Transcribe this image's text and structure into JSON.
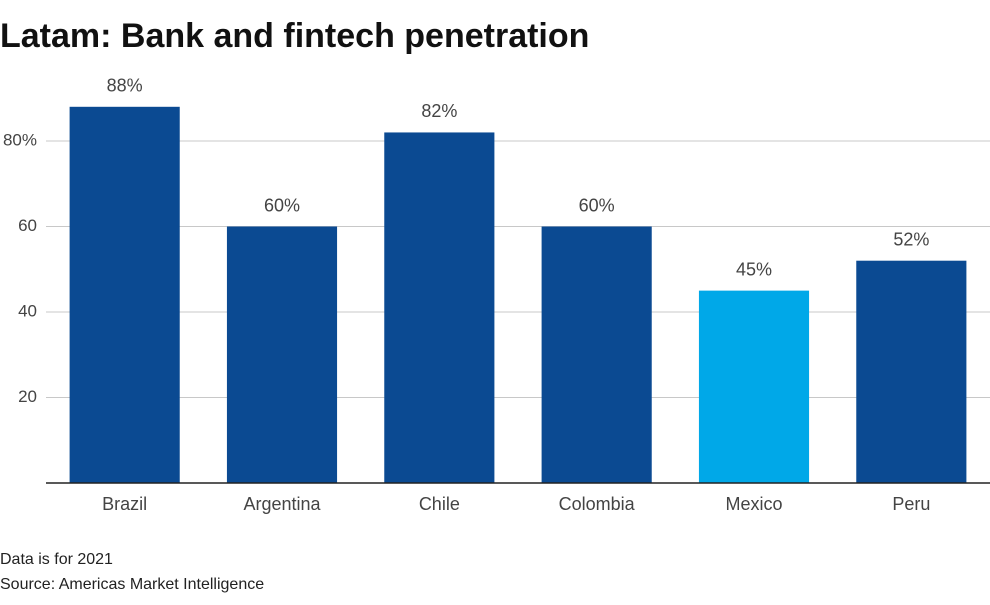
{
  "chart_data": {
    "type": "bar",
    "title": "Latam: Bank and fintech penetration",
    "categories": [
      "Brazil",
      "Argentina",
      "Chile",
      "Colombia",
      "Mexico",
      "Peru"
    ],
    "values": [
      88,
      60,
      82,
      60,
      45,
      52
    ],
    "value_labels": [
      "88%",
      "60%",
      "82%",
      "60%",
      "45%",
      "52%"
    ],
    "colors": [
      "#0b4a92",
      "#0b4a92",
      "#0b4a92",
      "#0b4a92",
      "#00a8e8",
      "#0b4a92"
    ],
    "ylim": [
      0,
      100
    ],
    "yticks": [
      20,
      40,
      60,
      {
        "value": 80,
        "label": "80%"
      }
    ],
    "grid": true,
    "notes": [
      "Data is for 2021",
      "Source: Americas Market Intelligence"
    ]
  }
}
